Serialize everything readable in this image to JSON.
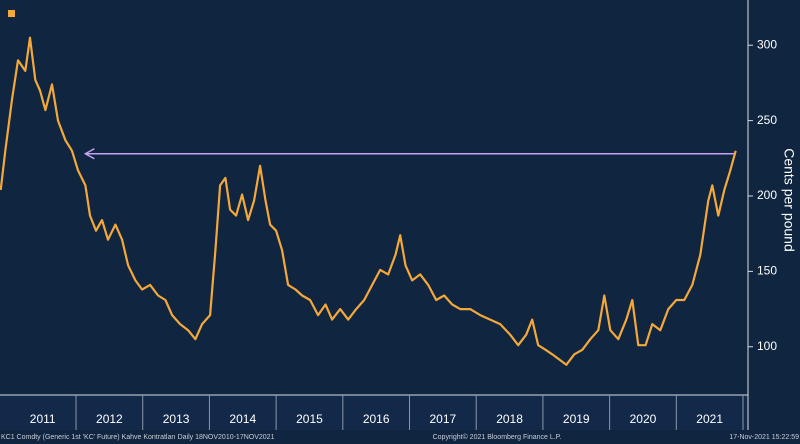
{
  "chart_data": {
    "type": "line",
    "y_label": "Cents per pound",
    "footer_left": "KC1 Comdty (Generic 1st 'KC' Future) Kahve Kontratları  Daily 18NOV2010-17NOV2021",
    "footer_center": "Copyright© 2021 Bloomberg Finance L.P.",
    "footer_right": "17-Nov-2021 15:22:59",
    "series": [
      {
        "color": "#f5a83a",
        "x": [
          2010.87,
          2010.94,
          2011.04,
          2011.13,
          2011.24,
          2011.31,
          2011.39,
          2011.46,
          2011.54,
          2011.64,
          2011.73,
          2011.84,
          2011.94,
          2012.03,
          2012.14,
          2012.21,
          2012.3,
          2012.39,
          2012.48,
          2012.59,
          2012.69,
          2012.78,
          2012.89,
          2012.99,
          2013.11,
          2013.23,
          2013.34,
          2013.44,
          2013.56,
          2013.68,
          2013.79,
          2013.89,
          2014.01,
          2014.09,
          2014.16,
          2014.24,
          2014.31,
          2014.4,
          2014.49,
          2014.58,
          2014.67,
          2014.76,
          2014.84,
          2014.91,
          2015.0,
          2015.09,
          2015.18,
          2015.29,
          2015.39,
          2015.51,
          2015.63,
          2015.74,
          2015.84,
          2015.96,
          2016.08,
          2016.2,
          2016.32,
          2016.44,
          2016.56,
          2016.68,
          2016.79,
          2016.86,
          2016.94,
          2017.04,
          2017.16,
          2017.28,
          2017.4,
          2017.52,
          2017.64,
          2017.76,
          2017.91,
          2018.06,
          2018.21,
          2018.36,
          2018.51,
          2018.63,
          2018.75,
          2018.84,
          2018.93,
          2019.04,
          2019.14,
          2019.26,
          2019.35,
          2019.47,
          2019.59,
          2019.71,
          2019.83,
          2019.92,
          2020.01,
          2020.13,
          2020.25,
          2020.34,
          2020.43,
          2020.54,
          2020.64,
          2020.76,
          2020.88,
          2021.0,
          2021.12,
          2021.24,
          2021.36,
          2021.48,
          2021.54,
          2021.63,
          2021.72,
          2021.81,
          2021.89
        ],
        "values": [
          204,
          230,
          264,
          290,
          283,
          305,
          277,
          270,
          257,
          274,
          250,
          237,
          230,
          217,
          207,
          187,
          177,
          184,
          171,
          181,
          171,
          154,
          144,
          138,
          141,
          134,
          131,
          121,
          115,
          111,
          105,
          115,
          121,
          164,
          207,
          212,
          191,
          187,
          201,
          184,
          197,
          220,
          197,
          181,
          177,
          164,
          141,
          138,
          134,
          131,
          121,
          128,
          118,
          125,
          118,
          125,
          131,
          141,
          151,
          148,
          161,
          174,
          154,
          144,
          148,
          141,
          131,
          134,
          128,
          125,
          125,
          121,
          118,
          115,
          108,
          101,
          108,
          118,
          101,
          98,
          95,
          91,
          88,
          95,
          98,
          105,
          111,
          134,
          111,
          105,
          118,
          131,
          101,
          101,
          115,
          111,
          125,
          131,
          131,
          141,
          161,
          197,
          207,
          187,
          204,
          217,
          230
        ]
      }
    ],
    "annotation_line": {
      "value": 228,
      "x_start": 2021.89,
      "x_end": 2012.14,
      "color": "#c9a0f5"
    },
    "xlim": [
      2010.86,
      2022.03
    ],
    "ylim": [
      68,
      330
    ],
    "yticks": [
      100,
      150,
      200,
      250,
      300
    ],
    "xticks": [
      {
        "value": 2011.5,
        "label": "2011"
      },
      {
        "value": 2012.5,
        "label": "2012"
      },
      {
        "value": 2013.5,
        "label": "2013"
      },
      {
        "value": 2014.5,
        "label": "2014"
      },
      {
        "value": 2015.5,
        "label": "2015"
      },
      {
        "value": 2016.5,
        "label": "2016"
      },
      {
        "value": 2017.5,
        "label": "2017"
      },
      {
        "value": 2018.5,
        "label": "2018"
      },
      {
        "value": 2019.5,
        "label": "2019"
      },
      {
        "value": 2020.5,
        "label": "2020"
      },
      {
        "value": 2021.5,
        "label": "2021"
      }
    ],
    "grid": false
  }
}
